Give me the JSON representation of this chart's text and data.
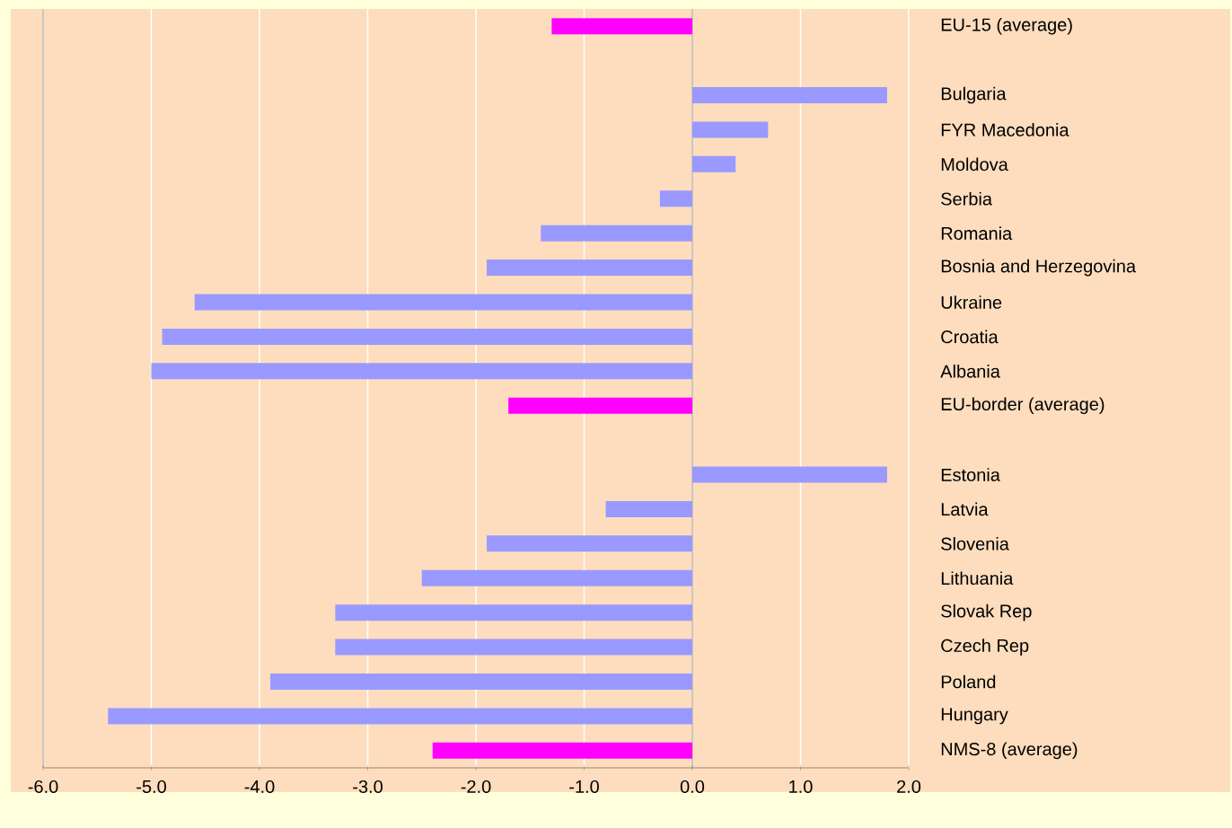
{
  "chart_data": {
    "type": "bar",
    "orientation": "horizontal",
    "categories": [
      "EU-15 (average)",
      null,
      "Bulgaria",
      "FYR Macedonia",
      "Moldova",
      "Serbia",
      "Romania",
      "Bosnia and Herzegovina",
      "Ukraine",
      "Croatia",
      "Albania",
      "EU-border (average)",
      null,
      "Estonia",
      "Latvia",
      "Slovenia",
      "Lithuania",
      "Slovak Rep",
      "Czech Rep",
      "Poland",
      "Hungary",
      "NMS-8 (average)"
    ],
    "values": [
      -1.3,
      null,
      1.8,
      0.7,
      0.4,
      -0.3,
      -1.4,
      -1.9,
      -4.6,
      -4.9,
      -5.0,
      -1.7,
      null,
      1.8,
      -0.8,
      -1.9,
      -2.5,
      -3.3,
      -3.3,
      -3.9,
      -5.4,
      -2.4
    ],
    "colors": [
      "#ff00ff",
      null,
      "#9999ff",
      "#9999ff",
      "#9999ff",
      "#9999ff",
      "#9999ff",
      "#9999ff",
      "#9999ff",
      "#9999ff",
      "#9999ff",
      "#ff00ff",
      null,
      "#9999ff",
      "#9999ff",
      "#9999ff",
      "#9999ff",
      "#9999ff",
      "#9999ff",
      "#9999ff",
      "#9999ff",
      "#ff00ff"
    ],
    "xlim": [
      -6,
      2
    ],
    "xticks": [
      {
        "value": -6,
        "label": "-6.0"
      },
      {
        "value": -5,
        "label": "-5.0"
      },
      {
        "value": -4,
        "label": "-4.0"
      },
      {
        "value": -3,
        "label": "-3.0"
      },
      {
        "value": -2,
        "label": "-2.0"
      },
      {
        "value": -1,
        "label": "-1.0"
      },
      {
        "value": 0,
        "label": "0.0"
      },
      {
        "value": 1,
        "label": "1.0"
      },
      {
        "value": 2,
        "label": "2.0"
      }
    ],
    "grid": "x"
  }
}
